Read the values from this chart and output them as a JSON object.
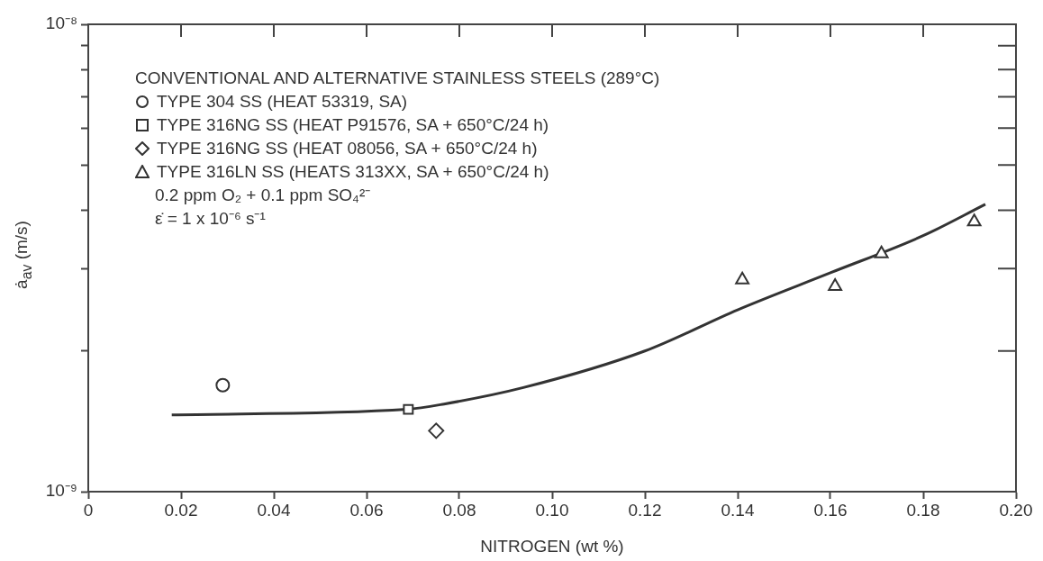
{
  "chart_data": {
    "type": "scatter",
    "xlabel": "NITROGEN (wt %)",
    "ylabel": "ȧ$_{av}$ (m/s)",
    "legend_title": "CONVENTIONAL AND ALTERNATIVE STAINLESS STEELS (289°C)",
    "legend": "top left",
    "log": "y",
    "xlim": [
      0,
      0.2
    ],
    "xticks": [
      0,
      0.02,
      0.04,
      0.06,
      0.08,
      {
        "value": 0.1,
        "label": "0.10"
      },
      0.12,
      0.14,
      0.16,
      0.18,
      {
        "value": 0.2,
        "label": "0.20"
      }
    ],
    "ylim": [
      1e-09,
      1e-08
    ],
    "yticks": [
      {
        "value": 1e-09,
        "label": "10⁻⁹"
      },
      {
        "value": 2e-09,
        "label": null
      },
      {
        "value": 3e-09,
        "label": null
      },
      {
        "value": 4e-09,
        "label": null
      },
      {
        "value": 5e-09,
        "label": null
      },
      {
        "value": 6e-09,
        "label": null
      },
      {
        "value": 7e-09,
        "label": null
      },
      {
        "value": 8e-09,
        "label": null
      },
      {
        "value": 9e-09,
        "label": null
      },
      {
        "value": 1e-08,
        "label": "10⁻⁸"
      }
    ],
    "series": [
      {
        "name": "TYPE 304 SS (HEAT 53319, SA)",
        "color": "#333333",
        "marker": "circle",
        "x": [
          0.029
        ],
        "values": [
          1.69e-09
        ]
      },
      {
        "name": "TYPE 316NG SS (HEAT P91576, SA + 650°C/24 h)",
        "color": "#333333",
        "marker": "square",
        "x": [
          0.069
        ],
        "values": [
          1.5e-09
        ]
      },
      {
        "name": "TYPE 316NG SS (HEAT 08056, SA + 650°C/24 h)",
        "color": "#333333",
        "marker": "diamond",
        "x": [
          0.075
        ],
        "values": [
          1.35e-09
        ]
      },
      {
        "name": "TYPE 316LN SS (HEATS 313XX, SA + 650°C/24 h)",
        "color": "#333333",
        "marker": "triangle",
        "x": [
          0.141,
          0.161,
          0.171,
          0.191
        ],
        "values": [
          2.84e-09,
          2.75e-09,
          3.23e-09,
          3.78e-09
        ]
      },
      {
        "type": "line",
        "color": "#333333",
        "marker": "none",
        "x": [
          0.018,
          0.0687,
          0.0767,
          0.0938,
          0.12,
          0.14,
          0.16,
          0.18,
          0.1934
        ],
        "values": [
          1.46e-09,
          1.5e-09,
          1.54e-09,
          1.67e-09,
          2e-09,
          2.45e-09,
          2.94e-09,
          3.53e-09,
          4.12e-09
        ]
      }
    ],
    "annotations": [
      "0.2 ppm O₂ + 0.1 ppm SO₄²⁻",
      "ε̇ = 1 x 10⁻⁶ s⁻¹"
    ]
  }
}
